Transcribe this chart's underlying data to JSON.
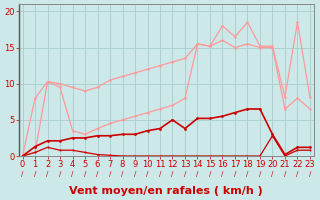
{
  "background_color": "#cce8e8",
  "grid_color": "#aacccc",
  "xlabel": "Vent moyen/en rafales ( km/h )",
  "xlabel_color": "#cc0000",
  "xlabel_fontsize": 8,
  "ylabel_ticks": [
    0,
    5,
    10,
    15,
    20
  ],
  "x_ticks": [
    0,
    1,
    2,
    3,
    4,
    5,
    6,
    7,
    8,
    9,
    10,
    11,
    12,
    13,
    14,
    15,
    16,
    17,
    18,
    19,
    20,
    21,
    22,
    23
  ],
  "xlim": [
    -0.3,
    23.3
  ],
  "ylim": [
    0,
    21
  ],
  "line_pink_max_x": [
    0,
    1,
    2,
    3,
    4,
    5,
    6,
    7,
    8,
    9,
    10,
    11,
    12,
    13,
    14,
    15,
    16,
    17,
    18,
    19,
    20,
    21,
    22,
    23
  ],
  "line_pink_max_y": [
    0,
    8.0,
    10.3,
    10.0,
    9.5,
    9.0,
    9.5,
    10.5,
    11.0,
    11.5,
    12.0,
    12.5,
    13.0,
    13.5,
    15.5,
    15.2,
    18.0,
    16.5,
    18.5,
    15.2,
    15.2,
    8.2,
    18.5,
    8.2
  ],
  "line_pink_max_color": "#ff9999",
  "line_pink_mid_x": [
    0,
    1,
    2,
    3,
    4,
    5,
    6,
    7,
    8,
    9,
    10,
    11,
    12,
    13,
    14,
    15,
    16,
    17,
    18,
    19,
    20,
    21,
    22,
    23
  ],
  "line_pink_mid_y": [
    0,
    0.5,
    10.3,
    9.5,
    3.5,
    3.0,
    3.8,
    4.5,
    5.0,
    5.5,
    6.0,
    6.5,
    7.0,
    8.0,
    15.5,
    15.2,
    16.0,
    15.0,
    15.5,
    15.0,
    15.0,
    6.5,
    8.0,
    6.5
  ],
  "line_pink_mid_color": "#ff9999",
  "line_dark_main_x": [
    0,
    1,
    2,
    3,
    4,
    5,
    6,
    7,
    8,
    9,
    10,
    11,
    12,
    13,
    14,
    15,
    16,
    17,
    18,
    19,
    20,
    21,
    22,
    23
  ],
  "line_dark_main_y": [
    0,
    1.3,
    2.1,
    2.1,
    2.5,
    2.5,
    2.8,
    2.8,
    3.0,
    3.0,
    3.5,
    3.8,
    5.0,
    3.8,
    5.2,
    5.2,
    5.5,
    6.0,
    6.5,
    6.5,
    3.0,
    0.2,
    1.2,
    1.2
  ],
  "line_dark_main_color": "#cc0000",
  "line_dark_low_x": [
    0,
    1,
    2,
    3,
    4,
    5,
    6,
    7,
    8,
    9,
    10,
    11,
    12,
    13,
    14,
    15,
    16,
    17,
    18,
    19,
    20,
    21,
    22,
    23
  ],
  "line_dark_low_y": [
    0,
    0.5,
    1.2,
    0.8,
    0.8,
    0.5,
    0.2,
    0.1,
    0.0,
    0.0,
    0.0,
    0.0,
    0.0,
    0.0,
    0.0,
    0.0,
    0.0,
    0.0,
    0.0,
    0.0,
    2.8,
    0.0,
    0.8,
    0.8
  ],
  "line_dark_low_color": "#cc0000",
  "tick_color": "#cc0000",
  "tick_fontsize": 6,
  "spine_color": "#888888",
  "arrow_color": "#cc0000"
}
